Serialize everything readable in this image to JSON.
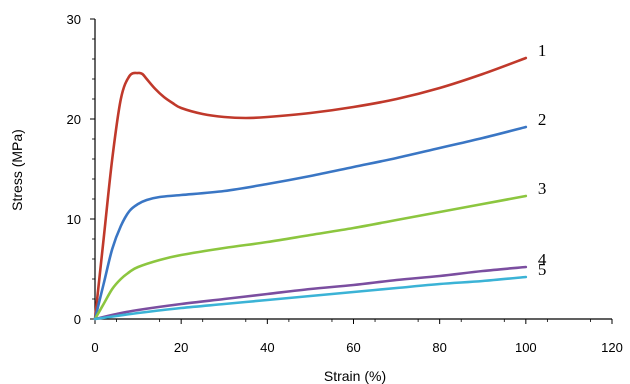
{
  "chart_data": {
    "type": "line",
    "xlabel": "Strain (%)",
    "ylabel": "Stress (MPa)",
    "xlim": [
      0,
      120
    ],
    "ylim": [
      0,
      30
    ],
    "xticks": [
      0,
      20,
      40,
      60,
      80,
      100,
      120
    ],
    "xtick_labels": [
      "0",
      "20",
      "40",
      "60",
      "80",
      "100",
      "120"
    ],
    "yticks": [
      0,
      10,
      20,
      30
    ],
    "ytick_labels": [
      "0",
      "10",
      "20",
      "30"
    ],
    "grid": false,
    "legend": "none",
    "series": [
      {
        "name": "1",
        "color": "#c0392b",
        "x": [
          0,
          2,
          4,
          6,
          8,
          10,
          11,
          12,
          14,
          16,
          18,
          20,
          25,
          30,
          35,
          40,
          50,
          60,
          70,
          80,
          90,
          100
        ],
        "y": [
          0,
          8,
          16,
          22,
          24.3,
          24.6,
          24.5,
          24.0,
          23.0,
          22.2,
          21.6,
          21.1,
          20.5,
          20.2,
          20.1,
          20.2,
          20.6,
          21.2,
          22.0,
          23.1,
          24.5,
          26.1
        ]
      },
      {
        "name": "2",
        "color": "#3a76c4",
        "x": [
          0,
          2,
          4,
          6,
          8,
          10,
          12,
          15,
          20,
          30,
          40,
          50,
          60,
          70,
          80,
          90,
          100
        ],
        "y": [
          0,
          3.5,
          7,
          9.3,
          10.8,
          11.5,
          11.9,
          12.2,
          12.4,
          12.8,
          13.5,
          14.3,
          15.2,
          16.1,
          17.1,
          18.1,
          19.2
        ]
      },
      {
        "name": "3",
        "color": "#8cc63f",
        "x": [
          0,
          2,
          4,
          6,
          8,
          10,
          15,
          20,
          30,
          40,
          50,
          60,
          70,
          80,
          90,
          100
        ],
        "y": [
          0,
          1.5,
          3.0,
          4.0,
          4.7,
          5.2,
          5.9,
          6.4,
          7.1,
          7.7,
          8.4,
          9.1,
          9.9,
          10.7,
          11.5,
          12.3
        ]
      },
      {
        "name": "4",
        "color": "#7b4ea0",
        "x": [
          0,
          5,
          10,
          20,
          30,
          40,
          50,
          60,
          70,
          80,
          90,
          100
        ],
        "y": [
          0,
          0.5,
          0.9,
          1.5,
          2.0,
          2.5,
          3.0,
          3.4,
          3.9,
          4.3,
          4.8,
          5.2
        ]
      },
      {
        "name": "5",
        "color": "#3bb3d6",
        "x": [
          0,
          5,
          10,
          20,
          30,
          40,
          50,
          60,
          70,
          80,
          90,
          100
        ],
        "y": [
          0,
          0.3,
          0.6,
          1.1,
          1.5,
          1.9,
          2.3,
          2.7,
          3.1,
          3.5,
          3.8,
          4.2
        ]
      }
    ]
  }
}
